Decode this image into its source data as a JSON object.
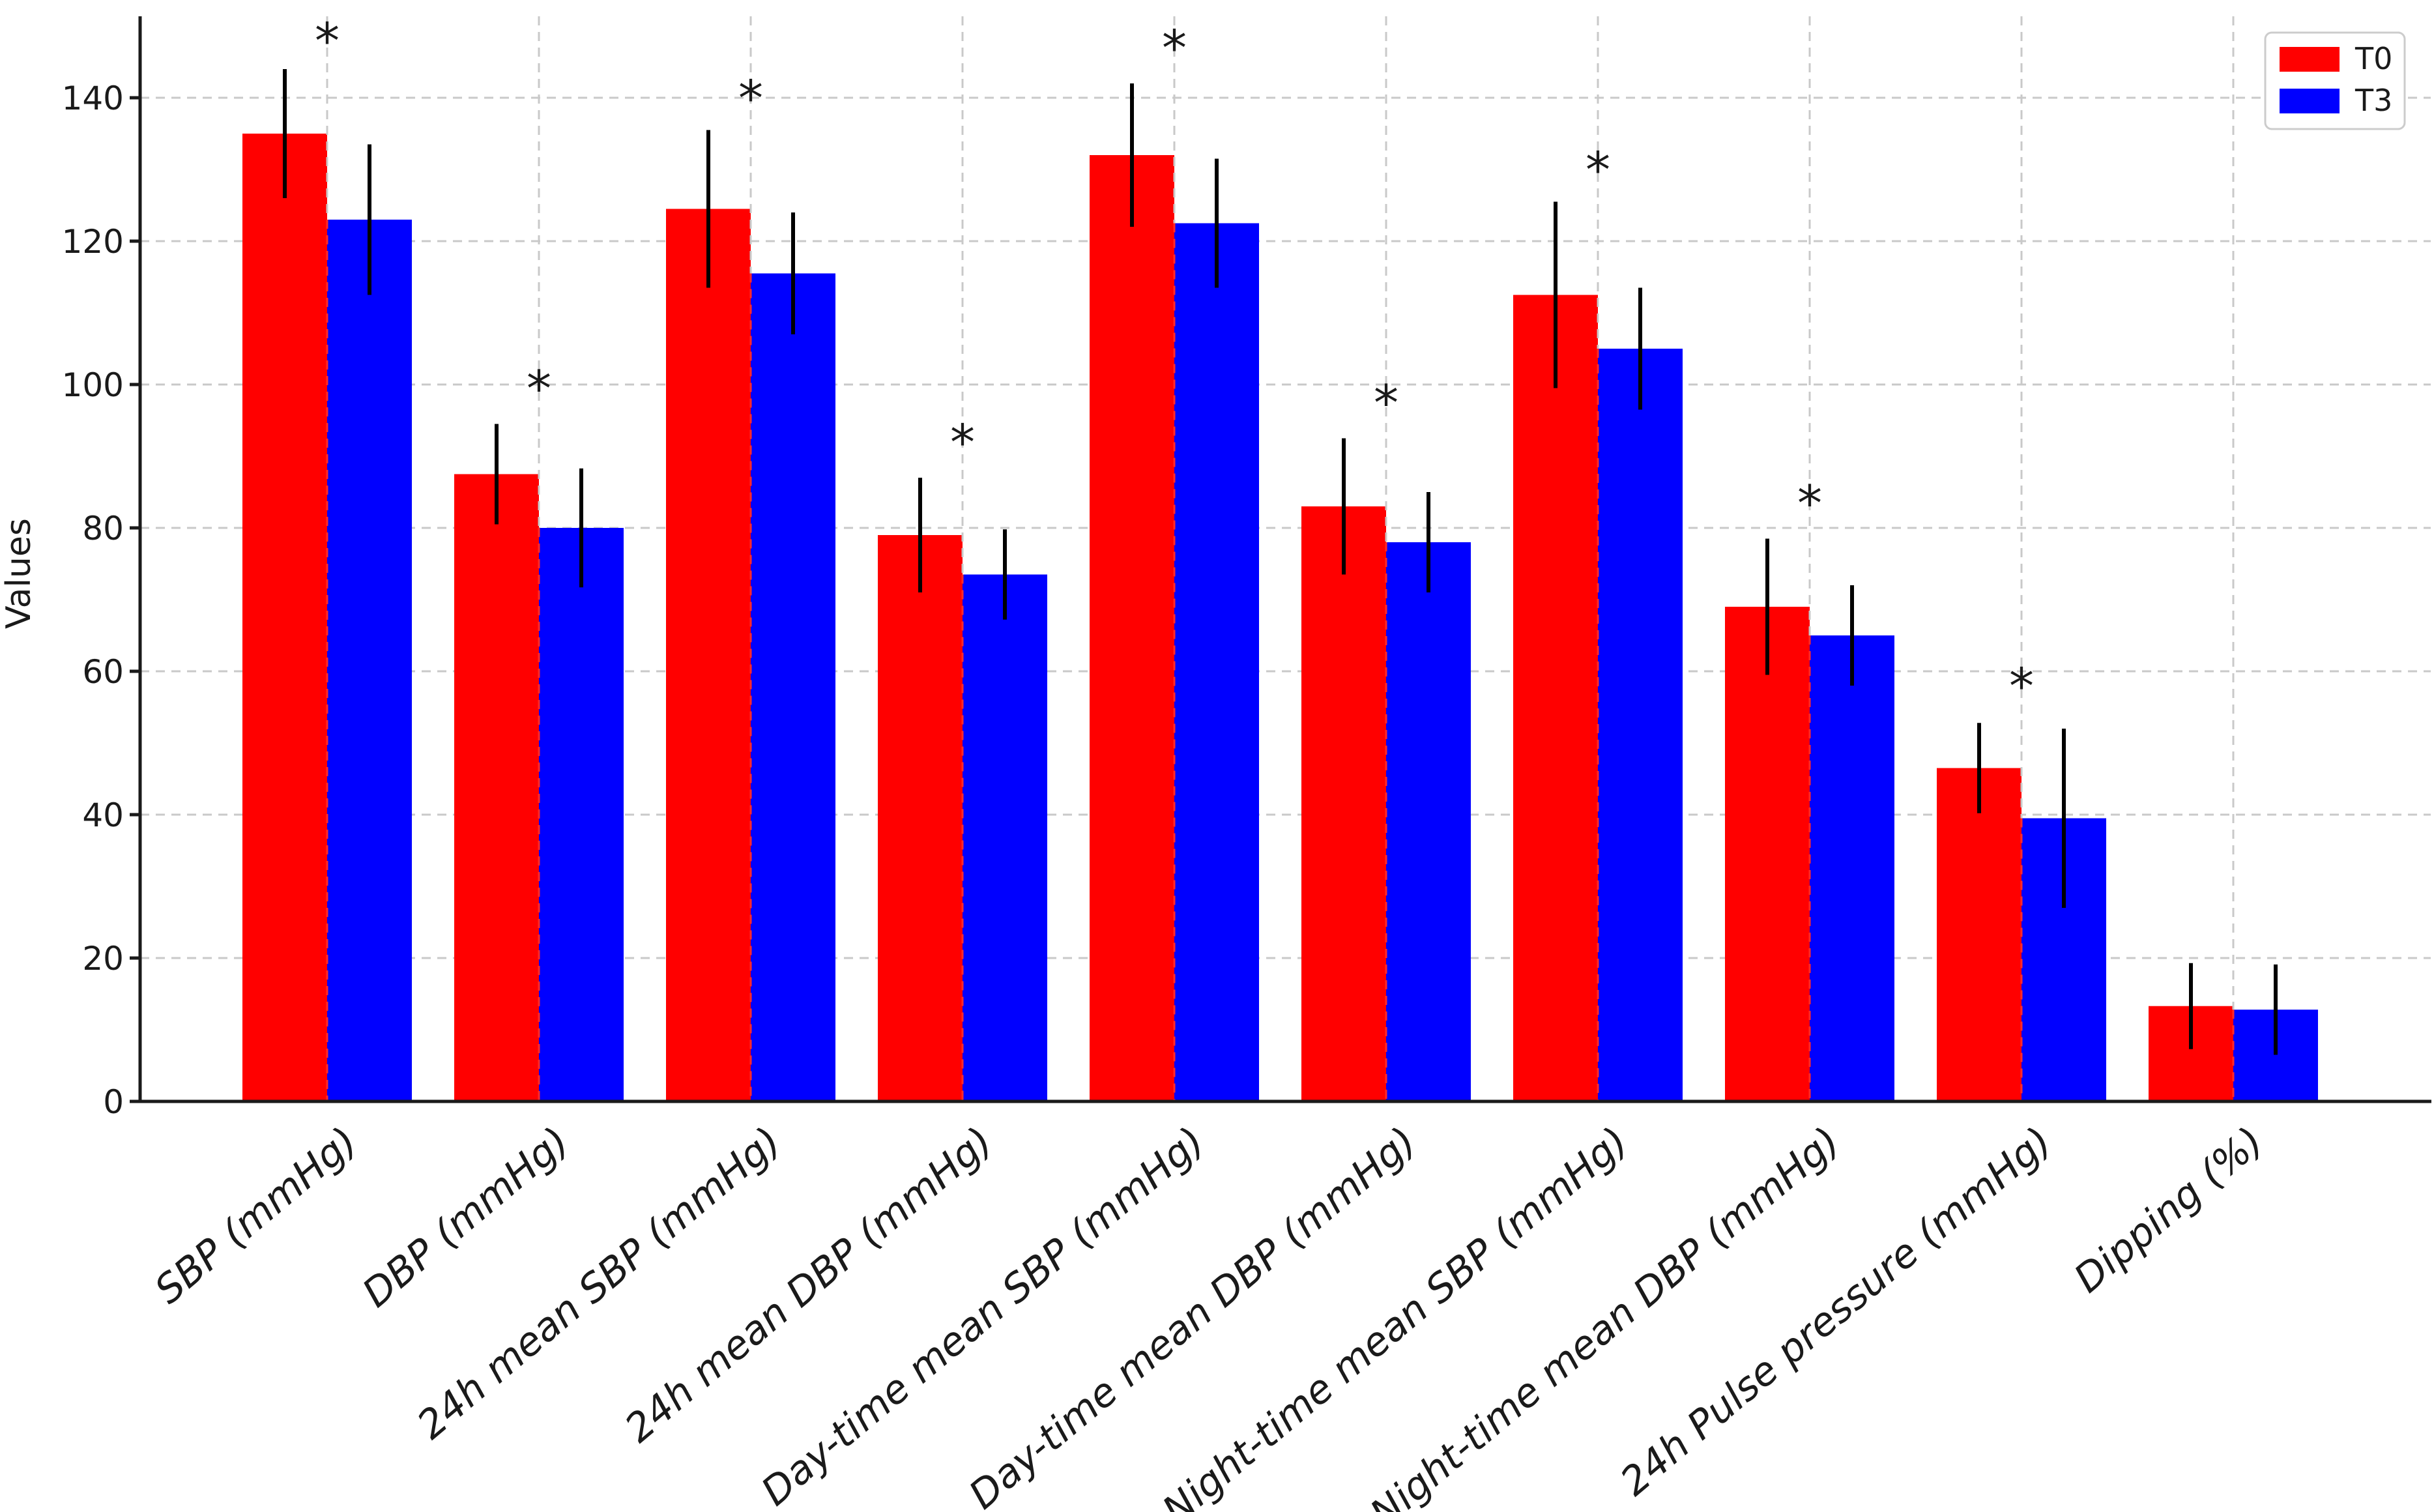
{
  "chart_data": {
    "type": "bar",
    "title": "",
    "xlabel": "",
    "ylabel": "Values",
    "ylim": [
      0,
      151
    ],
    "yticks": [
      0,
      20,
      40,
      60,
      80,
      100,
      120,
      140
    ],
    "grid": "dashed-both-axes",
    "legend_position": "upper right",
    "categories": [
      "SBP (mmHg)",
      "DBP (mmHg)",
      "24h mean SBP (mmHg)",
      "24h mean DBP (mmHg)",
      "Day-time mean SBP (mmHg)",
      "Day-time mean DBP (mmHg)",
      "Night-time mean SBP (mmHg)",
      "Night-time mean DBP (mmHg)",
      "24h Pulse pressure (mmHg)",
      "Dipping (%)"
    ],
    "series": [
      {
        "name": "T0",
        "color": "#ff0000",
        "values": [
          135,
          87.5,
          124.5,
          79,
          132,
          83,
          112.5,
          69,
          46.5,
          13.3
        ],
        "errors": [
          9,
          7,
          11,
          8,
          10,
          9.5,
          13,
          9.5,
          6.3,
          6
        ]
      },
      {
        "name": "T3",
        "color": "#0000ff",
        "values": [
          123,
          80,
          115.5,
          73.5,
          122.5,
          78,
          105,
          65,
          39.5,
          12.8
        ],
        "errors": [
          10.5,
          8.3,
          8.5,
          6.3,
          9,
          7,
          8.5,
          7,
          12.5,
          6.3
        ]
      }
    ],
    "significance_marker": "*",
    "significance_marker_y": [
      149,
      100.5,
      141,
      93,
      148,
      98.5,
      131,
      84.5,
      59,
      null
    ],
    "errorbar_color": "#000000",
    "gridline_color": "#c9c9c9",
    "axis_color": "#1a1a1a"
  }
}
